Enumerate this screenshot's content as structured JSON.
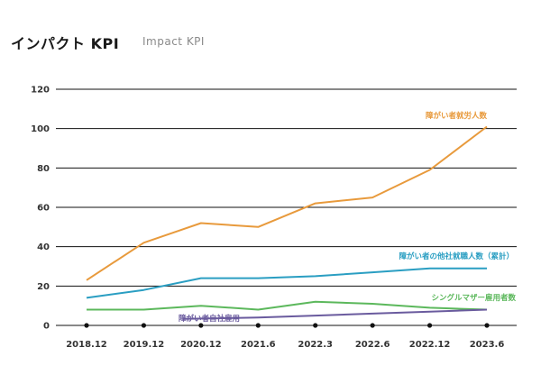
{
  "header": {
    "title_jp": "インパクト KPI",
    "title_en": "Impact KPI"
  },
  "chart_data": {
    "type": "line",
    "title": "インパクト KPI",
    "subtitle": "Impact KPI",
    "categories": [
      "2018.12",
      "2019.12",
      "2020.12",
      "2021.6",
      "2022.3",
      "2022.6",
      "2022.12",
      "2023.6"
    ],
    "yticks": [
      0,
      20,
      40,
      60,
      80,
      100,
      120
    ],
    "ylim": [
      0,
      120
    ],
    "grid": true,
    "series": [
      {
        "name": "障がい者就労人数",
        "color": "#e89a3c",
        "values": [
          23,
          42,
          52,
          50,
          62,
          65,
          79,
          101
        ]
      },
      {
        "name": "障がい者の他社就職人数（累計）",
        "color": "#2a9ec2",
        "values": [
          14,
          18,
          24,
          24,
          25,
          27,
          29,
          29
        ]
      },
      {
        "name": "シングルマザー雇用者数",
        "color": "#5cb85c",
        "values": [
          8,
          8,
          10,
          8,
          12,
          11,
          9,
          8
        ]
      },
      {
        "name": "障がい者自社雇用",
        "color": "#6a5b9e",
        "values": [
          null,
          null,
          null,
          4,
          5,
          6,
          7,
          8
        ]
      }
    ]
  }
}
